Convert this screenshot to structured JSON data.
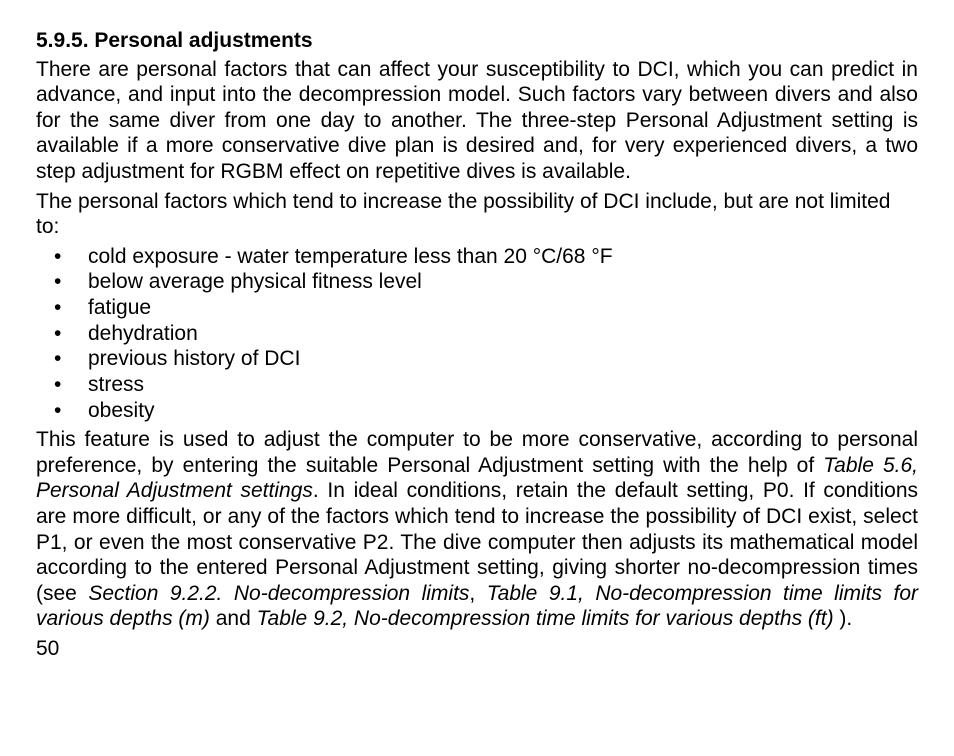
{
  "heading": "5.9.5. Personal adjustments",
  "para1": "There are personal factors that can affect your susceptibility to DCI, which you can predict in advance, and input into the decompression model. Such factors vary between divers and also for the same diver from one day to another. The three-step Personal Adjustment setting is available if a more conservative dive plan is desired and, for very experienced divers, a two step adjustment for RGBM effect on repetitive dives is available.",
  "para2": "The personal factors which tend to increase the possibility of DCI include, but are not limited to:",
  "bullets": {
    "b0": "cold exposure - water temperature less than 20 °C/68 °F",
    "b1": "below average physical fitness level",
    "b2": "fatigue",
    "b3": "dehydration",
    "b4": "previous history of DCI",
    "b5": "stress",
    "b6": "obesity"
  },
  "para3": {
    "t0": "This feature is used to adjust the computer to be more conservative, according to personal preference, by entering the suitable Personal Adjustment setting with the help of ",
    "ref1": "Table 5.6, Personal Adjustment settings",
    "t1": ". In ideal conditions, retain the default setting, P0. If conditions are more difficult, or any of the factors which tend to increase the possibility of DCI exist, select P1, or even the most conservative P2. The dive computer then adjusts its mathematical model according to the entered Personal Adjustment setting, giving shorter no-decompression times (see ",
    "ref2": "Section 9.2.2. No-decompression limits",
    "t2": ", ",
    "ref3": "Table 9.1, No-decompression time limits for various depths (m)",
    "t3": " and ",
    "ref4": "Table 9.2, No-decompression time limits for various depths (ft)",
    "t4": " )."
  },
  "pageNumber": "50"
}
